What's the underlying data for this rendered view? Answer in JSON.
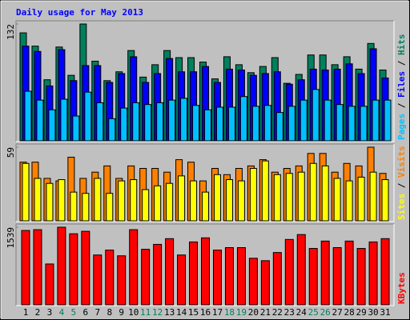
{
  "chart_data": [
    {
      "type": "bar",
      "title": "Daily usage for May 2013",
      "title_color": "#0000ff",
      "ylim": [
        0,
        132
      ],
      "yticks": [
        132
      ],
      "legend_separator": "/",
      "series": [
        {
          "name": "Hits",
          "color": "#00805c",
          "values": [
            122,
            107,
            69,
            106,
            74,
            132,
            90,
            68,
            78,
            102,
            72,
            86,
            102,
            94,
            94,
            89,
            70,
            95,
            86,
            77,
            84,
            94,
            65,
            75,
            97,
            97,
            86,
            95,
            81,
            110,
            80
          ]
        },
        {
          "name": "Files",
          "color": "#0000ff",
          "values": [
            107,
            101,
            62,
            103,
            68,
            85,
            85,
            66,
            76,
            95,
            66,
            76,
            93,
            78,
            78,
            84,
            66,
            81,
            80,
            74,
            76,
            78,
            64,
            69,
            81,
            80,
            81,
            87,
            76,
            104,
            71
          ]
        },
        {
          "name": "Pages",
          "color": "#00c0ff",
          "values": [
            56,
            46,
            35,
            47,
            28,
            55,
            43,
            25,
            37,
            43,
            41,
            43,
            46,
            48,
            40,
            35,
            38,
            38,
            50,
            39,
            40,
            32,
            39,
            46,
            58,
            46,
            41,
            39,
            39,
            46,
            46
          ]
        }
      ]
    },
    {
      "type": "bar",
      "ylim": [
        0,
        59
      ],
      "yticks": [
        59
      ],
      "legend_separator": "/",
      "series": [
        {
          "name": "Visits",
          "color": "#ff8000",
          "values": [
            47,
            47,
            34,
            32,
            51,
            34,
            39,
            44,
            34,
            44,
            42,
            42,
            39,
            49,
            47,
            32,
            42,
            37,
            42,
            44,
            49,
            39,
            42,
            44,
            54,
            54,
            39,
            46,
            44,
            59,
            38
          ]
        },
        {
          "name": "Sites",
          "color": "#ffff00",
          "values": [
            46,
            34,
            30,
            33,
            23,
            22,
            34,
            22,
            32,
            33,
            25,
            28,
            30,
            36,
            32,
            23,
            37,
            33,
            32,
            42,
            48,
            37,
            38,
            39,
            46,
            44,
            34,
            32,
            35,
            39,
            33
          ]
        }
      ]
    },
    {
      "type": "bar",
      "ylim": [
        0,
        1539
      ],
      "yticks": [
        1539
      ],
      "legend_separator": "/",
      "series": [
        {
          "name": "KBytes",
          "color": "#ff0000",
          "values": [
            1474,
            1490,
            810,
            1539,
            1409,
            1458,
            988,
            1085,
            972,
            1490,
            1101,
            1199,
            1312,
            988,
            1247,
            1328,
            1085,
            1134,
            1134,
            923,
            875,
            1037,
            1296,
            1393,
            1118,
            1264,
            1134,
            1264,
            1118,
            1247,
            1312
          ]
        }
      ],
      "categories": [
        "1",
        "2",
        "3",
        "4",
        "5",
        "6",
        "7",
        "8",
        "9",
        "10",
        "11",
        "12",
        "13",
        "14",
        "15",
        "16",
        "17",
        "18",
        "19",
        "20",
        "21",
        "22",
        "23",
        "24",
        "25",
        "26",
        "27",
        "28",
        "29",
        "30",
        "31"
      ],
      "category_colors": [
        "#000000",
        "#000000",
        "#000000",
        "#00805c",
        "#00805c",
        "#000000",
        "#000000",
        "#000000",
        "#000000",
        "#000000",
        "#00805c",
        "#00805c",
        "#000000",
        "#000000",
        "#000000",
        "#000000",
        "#000000",
        "#00805c",
        "#00805c",
        "#000000",
        "#000000",
        "#000000",
        "#000000",
        "#000000",
        "#00805c",
        "#00805c",
        "#000000",
        "#000000",
        "#000000",
        "#000000",
        "#000000"
      ]
    }
  ]
}
